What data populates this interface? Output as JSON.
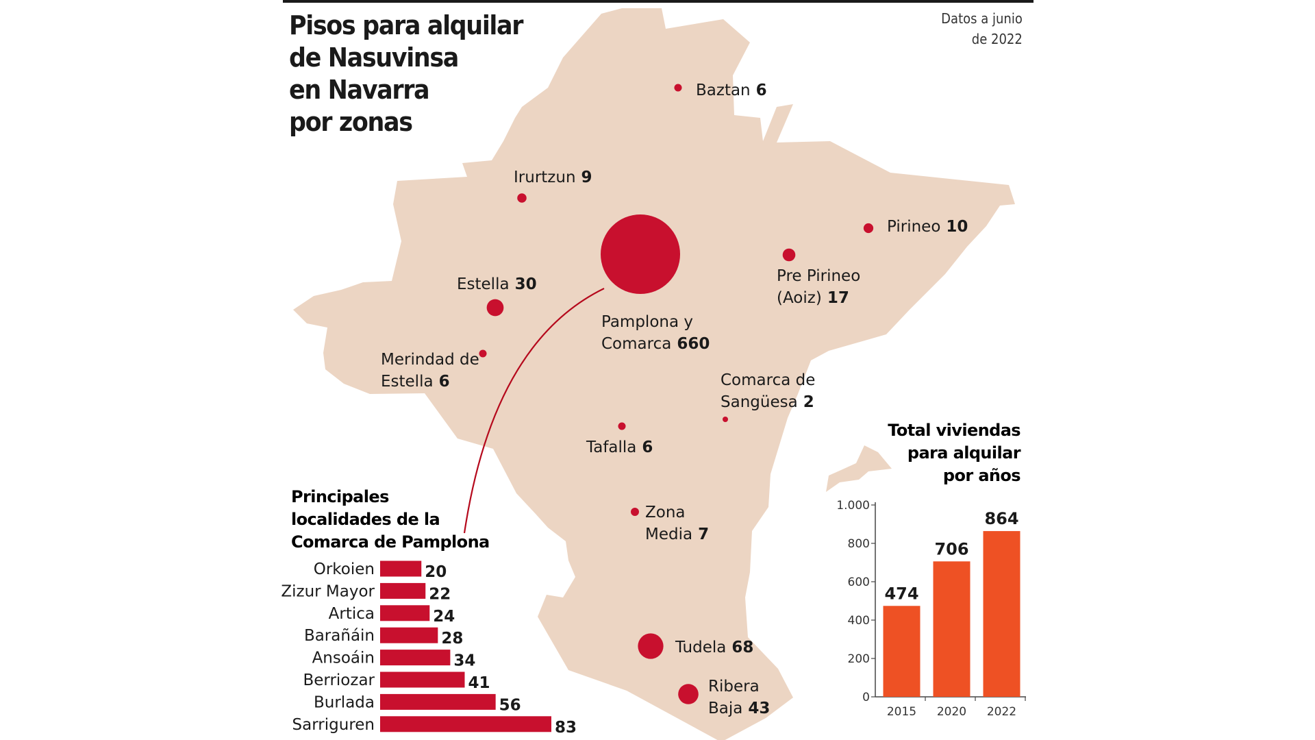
{
  "title_lines": [
    "Pisos para alquilar",
    "de Nasuvinsa",
    "en Navarra",
    "por zonas"
  ],
  "date_lines": [
    "Datos a junio",
    "de 2022"
  ],
  "colors": {
    "map": "#ecd5c3",
    "bubble": "#c8102e",
    "bar_zones": "#c8102e",
    "bar_years": "#ee5124",
    "topline": "#1a1a1a"
  },
  "chart_data": [
    {
      "type": "scatter",
      "name": "map-bubbles",
      "points": [
        {
          "label_lines": [
            "Baztan"
          ],
          "value": 6
        },
        {
          "label_lines": [
            "Irurtzun"
          ],
          "value": 9
        },
        {
          "label_lines": [
            "Pirineo"
          ],
          "value": 10
        },
        {
          "label_lines": [
            "Pre Pirineo",
            "(Aoiz)"
          ],
          "value": 17
        },
        {
          "label_lines": [
            "Estella"
          ],
          "value": 30
        },
        {
          "label_lines": [
            "Pamplona y",
            "Comarca"
          ],
          "value": 660
        },
        {
          "label_lines": [
            "Merindad de",
            "Estella"
          ],
          "value": 6
        },
        {
          "label_lines": [
            "Comarca de",
            "Sangüesa"
          ],
          "value": 2
        },
        {
          "label_lines": [
            "Tafalla"
          ],
          "value": 6
        },
        {
          "label_lines": [
            "Zona",
            "Media"
          ],
          "value": 7
        },
        {
          "label_lines": [
            "Tudela"
          ],
          "value": 68
        },
        {
          "label_lines": [
            "Ribera",
            "Baja"
          ],
          "value": 43
        }
      ]
    },
    {
      "type": "bar",
      "orientation": "horizontal",
      "title_lines": [
        "Principales",
        "localidades de la",
        "Comarca de Pamplona"
      ],
      "categories": [
        "Orkoien",
        "Zizur Mayor",
        "Artica",
        "Barañáin",
        "Ansoáin",
        "Berriozar",
        "Burlada",
        "Sarriguren"
      ],
      "values": [
        20,
        22,
        24,
        28,
        34,
        41,
        56,
        83
      ]
    },
    {
      "type": "bar",
      "title_lines": [
        "Total viviendas",
        "para alquilar",
        "por años"
      ],
      "categories": [
        "2015",
        "2020",
        "2022"
      ],
      "values": [
        474,
        706,
        864
      ],
      "ylim": [
        0,
        1000
      ],
      "yticks": [
        0,
        200,
        400,
        600,
        800,
        1000
      ],
      "ytick_labels": [
        "0",
        "200",
        "400",
        "600",
        "800",
        "1.000"
      ]
    }
  ]
}
